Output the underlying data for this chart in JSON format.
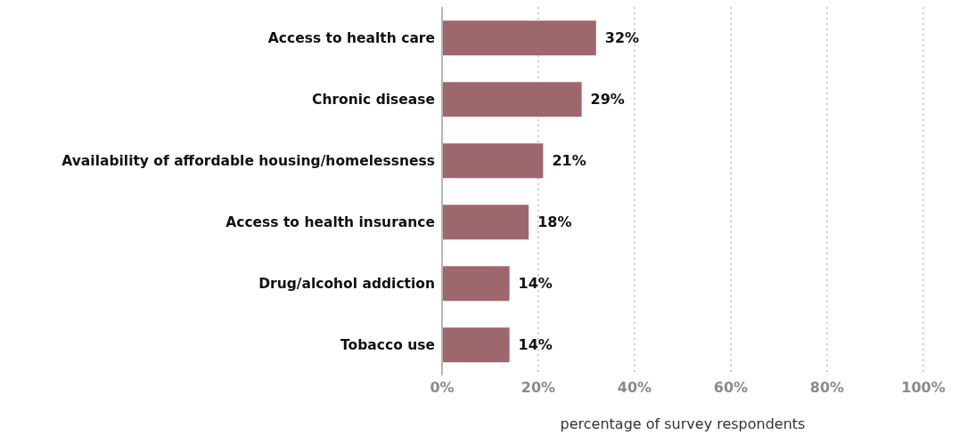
{
  "chart_data": {
    "type": "bar",
    "orientation": "horizontal",
    "xlabel": "percentage of survey respondents",
    "categories": [
      "Access to health care",
      "Chronic disease",
      "Availability of affordable housing/homelessness",
      "Access to health insurance",
      "Drug/alcohol addiction",
      "Tobacco use"
    ],
    "values": [
      32,
      29,
      21,
      18,
      14,
      14
    ],
    "value_labels": [
      "32%",
      "29%",
      "21%",
      "18%",
      "14%",
      "14%"
    ],
    "color": "#9e666d",
    "xlim": [
      0,
      100
    ],
    "xticks": [
      {
        "value": 0,
        "label": "0%"
      },
      {
        "value": 20,
        "label": "20%"
      },
      {
        "value": 40,
        "label": "40%"
      },
      {
        "value": 60,
        "label": "60%"
      },
      {
        "value": 80,
        "label": "80%"
      },
      {
        "value": 100,
        "label": "100%"
      }
    ],
    "grid": "x"
  }
}
